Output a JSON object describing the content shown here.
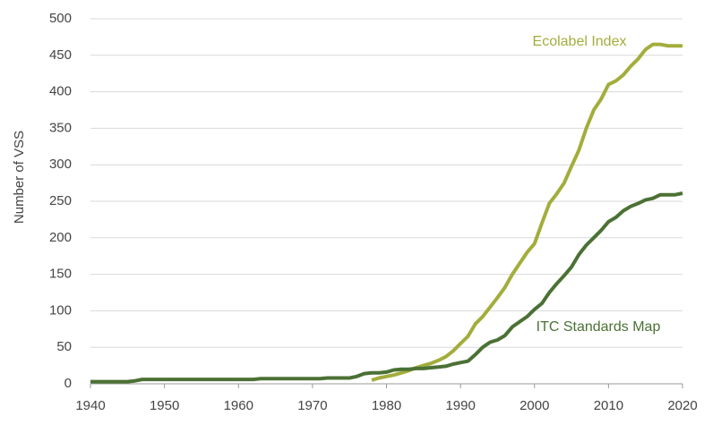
{
  "chart_data": {
    "type": "line",
    "y_label": "Number of VSS",
    "x": [
      1940,
      1941,
      1942,
      1943,
      1944,
      1945,
      1946,
      1947,
      1948,
      1949,
      1950,
      1951,
      1952,
      1953,
      1954,
      1955,
      1956,
      1957,
      1958,
      1959,
      1960,
      1961,
      1962,
      1963,
      1964,
      1965,
      1966,
      1967,
      1968,
      1969,
      1970,
      1971,
      1972,
      1973,
      1974,
      1975,
      1976,
      1977,
      1978,
      1979,
      1980,
      1981,
      1982,
      1983,
      1984,
      1985,
      1986,
      1987,
      1988,
      1989,
      1990,
      1991,
      1992,
      1993,
      1994,
      1995,
      1996,
      1997,
      1998,
      1999,
      2000,
      2001,
      2002,
      2003,
      2004,
      2005,
      2006,
      2007,
      2008,
      2009,
      2010,
      2011,
      2012,
      2013,
      2014,
      2015,
      2016,
      2017,
      2018,
      2019,
      2020
    ],
    "series": [
      {
        "name": "Ecolabel Index",
        "color": "#a3ad3c",
        "values": [
          null,
          null,
          null,
          null,
          null,
          null,
          null,
          null,
          null,
          null,
          null,
          null,
          null,
          null,
          null,
          null,
          null,
          null,
          null,
          null,
          null,
          null,
          null,
          null,
          null,
          null,
          null,
          null,
          null,
          null,
          null,
          null,
          null,
          null,
          null,
          null,
          null,
          null,
          5,
          8,
          10,
          12,
          15,
          18,
          22,
          25,
          28,
          32,
          37,
          45,
          55,
          65,
          82,
          92,
          105,
          118,
          132,
          150,
          165,
          180,
          192,
          220,
          247,
          260,
          275,
          298,
          320,
          350,
          375,
          390,
          410,
          415,
          423,
          435,
          445,
          458,
          465,
          465,
          463,
          463,
          463
        ]
      },
      {
        "name": "ITC Standards Map",
        "color": "#4b7134",
        "values": [
          3,
          3,
          3,
          3,
          3,
          3,
          4,
          6,
          6,
          6,
          6,
          6,
          6,
          6,
          6,
          6,
          6,
          6,
          6,
          6,
          6,
          6,
          6,
          7,
          7,
          7,
          7,
          7,
          7,
          7,
          7,
          7,
          8,
          8,
          8,
          8,
          10,
          14,
          15,
          15,
          16,
          19,
          20,
          20,
          21,
          21,
          22,
          23,
          24,
          27,
          29,
          31,
          40,
          50,
          57,
          60,
          66,
          78,
          85,
          92,
          102,
          110,
          125,
          137,
          148,
          160,
          177,
          190,
          200,
          210,
          222,
          228,
          237,
          243,
          247,
          252,
          254,
          259,
          259,
          259,
          261
        ]
      }
    ],
    "xlim": [
      1940,
      2020
    ],
    "xticks": [
      1940,
      1950,
      1960,
      1970,
      1980,
      1990,
      2000,
      2010,
      2020
    ],
    "ylim": [
      0,
      500
    ],
    "yticks": [
      0,
      50,
      100,
      150,
      200,
      250,
      300,
      350,
      400,
      450,
      500
    ],
    "grid": true
  }
}
